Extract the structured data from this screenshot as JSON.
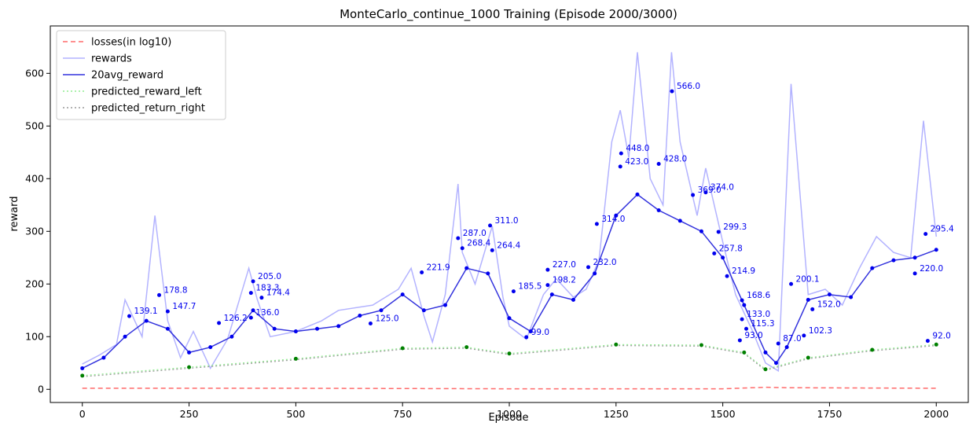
{
  "chart_data": {
    "type": "line",
    "title": "MonteCarlo_continue_1000 Training (Episode 2000/3000)",
    "xlabel": "Episode",
    "ylabel": "reward",
    "xlim": [
      -75,
      2075
    ],
    "ylim": [
      -25,
      690
    ],
    "x_ticks": [
      0,
      250,
      500,
      750,
      1000,
      1250,
      1500,
      1750,
      2000
    ],
    "y_ticks": [
      0,
      100,
      200,
      300,
      400,
      500,
      600
    ],
    "legend_position": "top-left",
    "colors": {
      "losses": "#ff6b6b",
      "rewards": "#b3b3ff",
      "avg": "#3333dd",
      "marker_blue": "#0000ee",
      "predicted_left": "#90ee90",
      "predicted_right": "#999999",
      "marker_green": "#008000"
    },
    "series": [
      {
        "name": "losses(in log10)",
        "style": "dashed",
        "x": [
          0,
          500,
          1000,
          1500,
          1600,
          1650,
          2000
        ],
        "y": [
          2,
          2,
          1,
          1,
          4,
          3,
          2
        ]
      },
      {
        "name": "rewards",
        "style": "solid",
        "x": [
          0,
          40,
          80,
          100,
          140,
          170,
          200,
          230,
          260,
          300,
          340,
          390,
          410,
          440,
          500,
          560,
          600,
          680,
          740,
          770,
          800,
          820,
          850,
          880,
          890,
          920,
          960,
          985,
          1000,
          1040,
          1080,
          1110,
          1150,
          1180,
          1210,
          1240,
          1260,
          1280,
          1300,
          1330,
          1360,
          1380,
          1400,
          1440,
          1460,
          1500,
          1530,
          1570,
          1600,
          1630,
          1660,
          1700,
          1740,
          1780,
          1820,
          1860,
          1900,
          1940,
          1970,
          2000
        ],
        "y": [
          48,
          65,
          85,
          170,
          100,
          330,
          130,
          60,
          110,
          40,
          95,
          230,
          170,
          100,
          110,
          130,
          150,
          160,
          190,
          230,
          140,
          90,
          180,
          390,
          260,
          200,
          310,
          175,
          120,
          95,
          180,
          210,
          175,
          190,
          245,
          470,
          530,
          440,
          640,
          400,
          350,
          640,
          470,
          330,
          420,
          280,
          180,
          110,
          50,
          35,
          580,
          180,
          190,
          160,
          230,
          290,
          260,
          250,
          510,
          290
        ]
      },
      {
        "name": "20avg_reward",
        "style": "solid",
        "x": [
          0,
          50,
          100,
          150,
          200,
          250,
          300,
          350,
          400,
          450,
          500,
          550,
          600,
          650,
          700,
          750,
          800,
          850,
          900,
          950,
          1000,
          1050,
          1100,
          1150,
          1200,
          1250,
          1300,
          1350,
          1400,
          1450,
          1500,
          1550,
          1600,
          1625,
          1650,
          1700,
          1750,
          1800,
          1850,
          1900,
          1950,
          2000
        ],
        "y": [
          40,
          60,
          100,
          130,
          115,
          70,
          80,
          100,
          150,
          115,
          110,
          115,
          120,
          140,
          150,
          180,
          150,
          160,
          230,
          220,
          135,
          110,
          180,
          170,
          220,
          330,
          370,
          340,
          320,
          300,
          250,
          160,
          70,
          50,
          80,
          170,
          180,
          175,
          230,
          245,
          250,
          265
        ]
      },
      {
        "name": "predicted_reward_left",
        "style": "dotted",
        "x": [
          0,
          250,
          500,
          750,
          900,
          1000,
          1250,
          1450,
          1550,
          1600,
          1700,
          1850,
          2000
        ],
        "y": [
          26,
          42,
          58,
          78,
          80,
          68,
          85,
          84,
          70,
          38,
          60,
          75,
          85
        ]
      },
      {
        "name": "predicted_return_right",
        "style": "dotted",
        "x": [
          0,
          250,
          500,
          750,
          900,
          1000,
          1250,
          1450,
          1550,
          1600,
          1700,
          1850,
          2000
        ],
        "y": [
          24,
          40,
          56,
          76,
          78,
          66,
          83,
          82,
          68,
          36,
          58,
          73,
          83
        ]
      }
    ],
    "point_labels": [
      {
        "x": 1381,
        "y": 566,
        "text": "566.0"
      },
      {
        "x": 1262,
        "y": 448,
        "text": "448.0"
      },
      {
        "x": 1350,
        "y": 428,
        "text": "428.0"
      },
      {
        "x": 1460,
        "y": 374,
        "text": "374.0"
      },
      {
        "x": 1430,
        "y": 369,
        "text": "369.0"
      },
      {
        "x": 1205,
        "y": 314,
        "text": "314.0"
      },
      {
        "x": 955,
        "y": 311,
        "text": "311.0"
      },
      {
        "x": 880,
        "y": 287,
        "text": "287.0"
      },
      {
        "x": 1490,
        "y": 299,
        "text": "299.3"
      },
      {
        "x": 1975,
        "y": 295,
        "text": "295.4"
      },
      {
        "x": 960,
        "y": 264,
        "text": "264.4"
      },
      {
        "x": 1480,
        "y": 258,
        "text": "257.8"
      },
      {
        "x": 1090,
        "y": 227,
        "text": "227.0"
      },
      {
        "x": 1185,
        "y": 232,
        "text": "232.0"
      },
      {
        "x": 795,
        "y": 222,
        "text": "221.9"
      },
      {
        "x": 1510,
        "y": 215,
        "text": "214.9"
      },
      {
        "x": 400,
        "y": 205,
        "text": "205.0"
      },
      {
        "x": 1660,
        "y": 200,
        "text": "200.1"
      },
      {
        "x": 1950,
        "y": 220,
        "text": "220.0"
      },
      {
        "x": 1545,
        "y": 169,
        "text": "168.6"
      },
      {
        "x": 1010,
        "y": 186,
        "text": "185.5"
      },
      {
        "x": 180,
        "y": 179,
        "text": "178.8"
      },
      {
        "x": 395,
        "y": 183,
        "text": "183.3"
      },
      {
        "x": 1710,
        "y": 152,
        "text": "152.0"
      },
      {
        "x": 200,
        "y": 148,
        "text": "147.7"
      },
      {
        "x": 110,
        "y": 139,
        "text": "139.1"
      },
      {
        "x": 1545,
        "y": 133,
        "text": "133.0"
      },
      {
        "x": 395,
        "y": 136,
        "text": "136.0"
      },
      {
        "x": 320,
        "y": 126,
        "text": "126.2"
      },
      {
        "x": 675,
        "y": 125,
        "text": "125.0"
      },
      {
        "x": 1555,
        "y": 115,
        "text": "115.3"
      },
      {
        "x": 1690,
        "y": 102,
        "text": "102.3"
      },
      {
        "x": 1040,
        "y": 99,
        "text": "99.0"
      },
      {
        "x": 1540,
        "y": 93,
        "text": "93.0"
      },
      {
        "x": 1630,
        "y": 87,
        "text": "87.0"
      },
      {
        "x": 1980,
        "y": 92,
        "text": "92.0"
      },
      {
        "x": 420,
        "y": 174,
        "text": "174.4"
      },
      {
        "x": 1090,
        "y": 198,
        "text": "198.2"
      },
      {
        "x": 890,
        "y": 268,
        "text": "268.4"
      },
      {
        "x": 1260,
        "y": 423,
        "text": "423.0"
      }
    ]
  },
  "legend": {
    "items": [
      {
        "label": "losses(in log10)",
        "color": "#ff6b6b",
        "style": "dashed"
      },
      {
        "label": "rewards",
        "color": "#b3b3ff",
        "style": "solid"
      },
      {
        "label": "20avg_reward",
        "color": "#3333dd",
        "style": "solid"
      },
      {
        "label": "predicted_reward_left",
        "color": "#90ee90",
        "style": "dotted"
      },
      {
        "label": "predicted_return_right",
        "color": "#999999",
        "style": "dotted"
      }
    ]
  }
}
